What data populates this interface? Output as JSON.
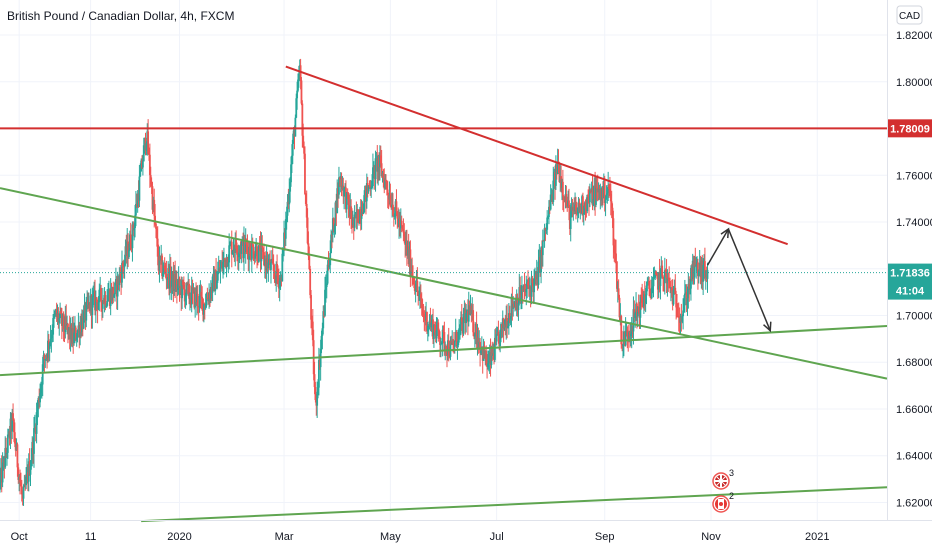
{
  "header": {
    "title": "British Pound / Canadian Dollar, 4h, FXCM",
    "currency": "CAD"
  },
  "colors": {
    "up": "#26a69a",
    "down": "#ef5350",
    "resistance": "#d32f2f",
    "trend": "#5fa550",
    "arrow": "#333333",
    "last_price_tag": "#26a69a"
  },
  "price_tags": {
    "resistance_label": "1.78009",
    "last_price_label": "1.71836",
    "countdown_label": "41:04"
  },
  "events": [
    {
      "icon": "uk-flag-icon",
      "count": "3"
    },
    {
      "icon": "canada-flag-icon",
      "count": "2"
    }
  ],
  "chart_data": {
    "type": "candlestick",
    "title": "British Pound / Canadian Dollar, 4h, FXCM",
    "y_axis": {
      "ticks": [
        "1.82000",
        "1.80000",
        "1.78000",
        "1.76000",
        "1.74000",
        "1.72000",
        "1.70000",
        "1.68000",
        "1.66000",
        "1.64000",
        "1.62000"
      ],
      "range": [
        1.6125,
        1.835
      ]
    },
    "x_axis": {
      "ticks": [
        "Oct",
        "11",
        "2020",
        "Mar",
        "May",
        "Jul",
        "Sep",
        "Nov",
        "2021"
      ],
      "range": [
        "2019-09-20",
        "2021-02-10"
      ]
    },
    "price_path": [
      [
        "2019-09-20",
        1.628
      ],
      [
        "2019-09-27",
        1.655
      ],
      [
        "2019-10-03",
        1.62
      ],
      [
        "2019-10-08",
        1.64
      ],
      [
        "2019-10-15",
        1.68
      ],
      [
        "2019-10-22",
        1.7
      ],
      [
        "2019-11-01",
        1.69
      ],
      [
        "2019-11-11",
        1.705
      ],
      [
        "2019-11-25",
        1.71
      ],
      [
        "2019-12-05",
        1.735
      ],
      [
        "2019-12-13",
        1.778
      ],
      [
        "2019-12-20",
        1.722
      ],
      [
        "2019-12-31",
        1.712
      ],
      [
        "2020-01-15",
        1.705
      ],
      [
        "2020-01-31",
        1.73
      ],
      [
        "2020-02-14",
        1.728
      ],
      [
        "2020-02-28",
        1.715
      ],
      [
        "2020-03-10",
        1.805
      ],
      [
        "2020-03-19",
        1.661
      ],
      [
        "2020-03-26",
        1.72
      ],
      [
        "2020-04-02",
        1.76
      ],
      [
        "2020-04-10",
        1.738
      ],
      [
        "2020-04-24",
        1.766
      ],
      [
        "2020-05-08",
        1.735
      ],
      [
        "2020-05-20",
        1.7
      ],
      [
        "2020-06-05",
        1.685
      ],
      [
        "2020-06-15",
        1.702
      ],
      [
        "2020-06-26",
        1.678
      ],
      [
        "2020-07-10",
        1.705
      ],
      [
        "2020-07-24",
        1.715
      ],
      [
        "2020-08-05",
        1.765
      ],
      [
        "2020-08-12",
        1.742
      ],
      [
        "2020-08-26",
        1.752
      ],
      [
        "2020-09-04",
        1.753
      ],
      [
        "2020-09-11",
        1.688
      ],
      [
        "2020-09-25",
        1.71
      ],
      [
        "2020-10-05",
        1.718
      ],
      [
        "2020-10-15",
        1.7
      ],
      [
        "2020-10-22",
        1.72
      ],
      [
        "2020-10-30",
        1.718
      ]
    ],
    "annotations": [
      {
        "type": "horizontal_line",
        "price": 1.78009,
        "color": "resistance"
      },
      {
        "type": "trend_line",
        "from": [
          "2020-03-02",
          1.8065
        ],
        "to": [
          "2020-12-15",
          1.7305
        ],
        "color": "resistance"
      },
      {
        "type": "trend_line",
        "from": [
          "2019-09-20",
          1.7545
        ],
        "to": [
          "2021-02-10",
          1.673
        ],
        "color": "trend"
      },
      {
        "type": "trend_line",
        "from": [
          "2019-09-20",
          1.6745
        ],
        "to": [
          "2021-02-10",
          1.6955
        ],
        "color": "trend"
      },
      {
        "type": "trend_line",
        "from": [
          "2019-12-10",
          1.612
        ],
        "to": [
          "2021-02-10",
          1.6265
        ],
        "color": "trend"
      },
      {
        "type": "arrow_path",
        "points": [
          [
            "2020-10-30",
            1.7215
          ],
          [
            "2020-11-11",
            1.737
          ],
          [
            "2020-12-05",
            1.6935
          ]
        ],
        "color": "arrow"
      }
    ]
  }
}
